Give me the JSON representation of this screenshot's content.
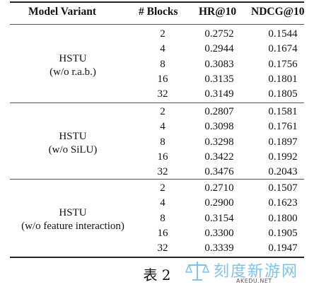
{
  "table": {
    "headers": [
      "Model Variant",
      "# Blocks",
      "HR@10",
      "NDCG@10"
    ],
    "groups": [
      {
        "variant_line1": "HSTU",
        "variant_line2": "(w/o r.a.b.)",
        "rows": [
          [
            "2",
            "0.2752",
            "0.1544"
          ],
          [
            "4",
            "0.2944",
            "0.1674"
          ],
          [
            "8",
            "0.3083",
            "0.1756"
          ],
          [
            "16",
            "0.3135",
            "0.1801"
          ],
          [
            "32",
            "0.3149",
            "0.1805"
          ]
        ]
      },
      {
        "variant_line1": "HSTU",
        "variant_line2": "(w/o SiLU)",
        "rows": [
          [
            "2",
            "0.2807",
            "0.1581"
          ],
          [
            "4",
            "0.3098",
            "0.1761"
          ],
          [
            "8",
            "0.3298",
            "0.1897"
          ],
          [
            "16",
            "0.3422",
            "0.1992"
          ],
          [
            "32",
            "0.3476",
            "0.2043"
          ]
        ]
      },
      {
        "variant_line1": "HSTU",
        "variant_line2": "(w/o feature interaction)",
        "rows": [
          [
            "2",
            "0.2710",
            "0.1507"
          ],
          [
            "4",
            "0.2900",
            "0.1623"
          ],
          [
            "8",
            "0.3154",
            "0.1800"
          ],
          [
            "16",
            "0.3300",
            "0.1905"
          ],
          [
            "32",
            "0.3339",
            "0.1947"
          ]
        ]
      }
    ]
  },
  "caption": "表 2",
  "watermark": {
    "text": "刻度新游网",
    "sub": "AKEDU.NET",
    "color": "#7ec3ea",
    "icon": "scale-balance-icon"
  }
}
